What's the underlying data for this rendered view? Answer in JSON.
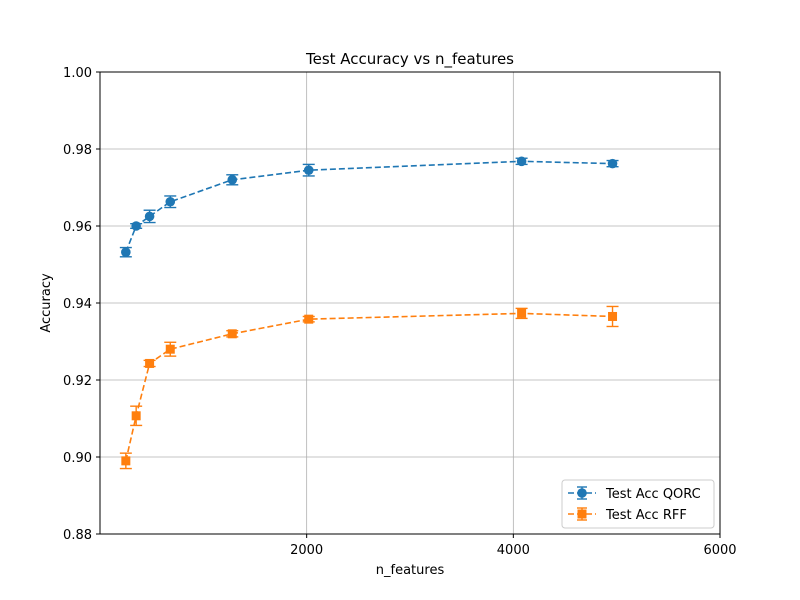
{
  "chart_data": {
    "type": "line",
    "title": "Test Accuracy vs n_features",
    "xlabel": "n_features",
    "ylabel": "Accuracy",
    "xlim": [
      0,
      6000
    ],
    "ylim": [
      0.88,
      1.0
    ],
    "xticks": [
      2000,
      4000,
      6000
    ],
    "yticks": [
      0.88,
      0.9,
      0.92,
      0.94,
      0.96,
      0.98,
      1.0
    ],
    "xtick_labels": [
      "2000",
      "4000",
      "6000"
    ],
    "ytick_labels": [
      "0.88",
      "0.90",
      "0.92",
      "0.94",
      "0.96",
      "0.98",
      "1.00"
    ],
    "grid": true,
    "legend_position": "lower-right",
    "series": [
      {
        "name": "Test Acc QORC",
        "color": "#1f77b4",
        "marker": "circle",
        "linestyle": "dashed",
        "x": [
          250,
          350,
          480,
          680,
          1280,
          2020,
          4080,
          4960
        ],
        "y": [
          0.9532,
          0.96,
          0.9625,
          0.9663,
          0.972,
          0.9745,
          0.9768,
          0.9762
        ],
        "err": [
          0.0012,
          0.0006,
          0.0016,
          0.0015,
          0.0013,
          0.0015,
          0.0008,
          0.0008
        ]
      },
      {
        "name": "Test Acc RFF",
        "color": "#ff7f0e",
        "marker": "square",
        "linestyle": "dashed",
        "x": [
          250,
          350,
          480,
          680,
          1280,
          2020,
          4080,
          4960
        ],
        "y": [
          0.899,
          0.9107,
          0.9243,
          0.928,
          0.932,
          0.9358,
          0.9373,
          0.9365
        ],
        "err": [
          0.002,
          0.0025,
          0.0008,
          0.0018,
          0.0008,
          0.0007,
          0.0013,
          0.0026
        ]
      }
    ]
  }
}
